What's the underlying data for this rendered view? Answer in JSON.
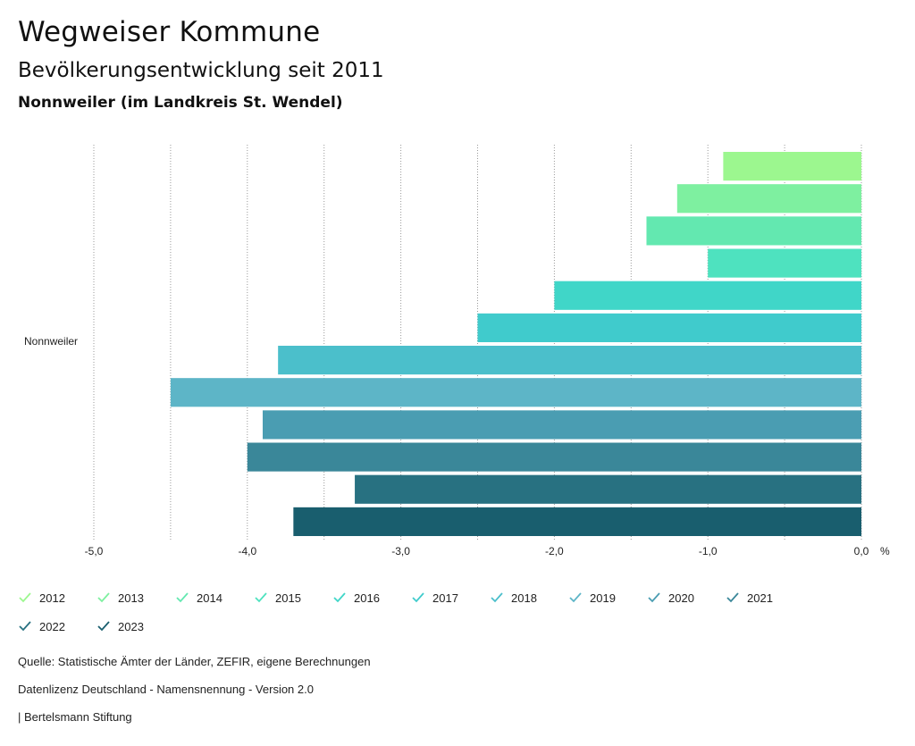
{
  "header": {
    "title": "Wegweiser Kommune",
    "subtitle": "Bevölkerungsentwicklung seit 2011",
    "region": "Nonnweiler (im Landkreis St. Wendel)"
  },
  "chart_data": {
    "type": "bar",
    "orientation": "horizontal",
    "categories": [
      "Nonnweiler"
    ],
    "series": [
      {
        "name": "2012",
        "values": [
          -0.9
        ],
        "color": "#9cf78f"
      },
      {
        "name": "2013",
        "values": [
          -1.2
        ],
        "color": "#7ef0a0"
      },
      {
        "name": "2014",
        "values": [
          -1.4
        ],
        "color": "#63e8b0"
      },
      {
        "name": "2015",
        "values": [
          -1.0
        ],
        "color": "#4ee2bf"
      },
      {
        "name": "2016",
        "values": [
          -2.0
        ],
        "color": "#40d6c8"
      },
      {
        "name": "2017",
        "values": [
          -2.5
        ],
        "color": "#40cbcc"
      },
      {
        "name": "2018",
        "values": [
          -3.8
        ],
        "color": "#4bbfcb"
      },
      {
        "name": "2019",
        "values": [
          -4.5
        ],
        "color": "#5db5c7"
      },
      {
        "name": "2020",
        "values": [
          -3.9
        ],
        "color": "#4a9db2"
      },
      {
        "name": "2021",
        "values": [
          -4.0
        ],
        "color": "#3a8799"
      },
      {
        "name": "2022",
        "values": [
          -3.3
        ],
        "color": "#287181"
      },
      {
        "name": "2023",
        "values": [
          -3.7
        ],
        "color": "#195e6e"
      }
    ],
    "xlim": [
      -5.0,
      0.0
    ],
    "ticks": [
      -5.0,
      -4.5,
      -4.0,
      -3.5,
      -3.0,
      -2.5,
      -2.0,
      -1.5,
      -1.0,
      -0.5,
      0.0
    ],
    "tick_labels": [
      {
        "value": -5.0,
        "label": "-5,0"
      },
      {
        "value": -4.0,
        "label": "-4,0"
      },
      {
        "value": -3.0,
        "label": "-3,0"
      },
      {
        "value": -2.0,
        "label": "-2,0"
      },
      {
        "value": -1.0,
        "label": "-1,0"
      },
      {
        "value": 0.0,
        "label": "0,0"
      }
    ],
    "unit_label": "%",
    "grid": true,
    "legend_position": "bottom"
  },
  "footer": {
    "source": "Quelle: Statistische Ämter der Länder, ZEFIR, eigene Berechnungen",
    "license": "Datenlizenz Deutschland - Namensnennung - Version 2.0",
    "publisher": "| Bertelsmann Stiftung"
  }
}
